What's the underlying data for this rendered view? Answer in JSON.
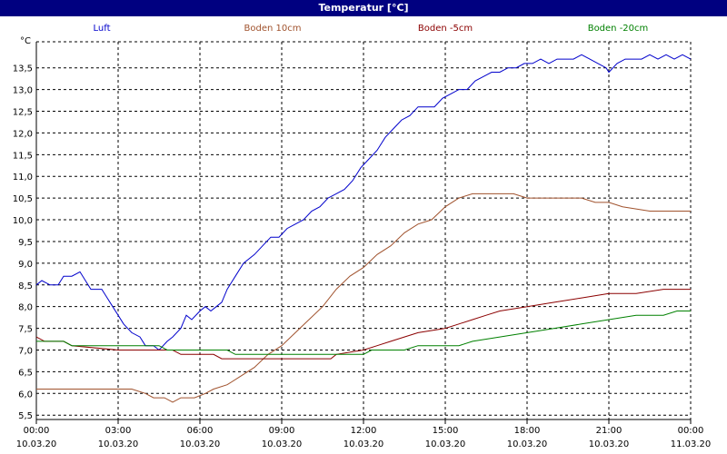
{
  "window": {
    "title": "Temperatur [°C]"
  },
  "chart_data": {
    "type": "line",
    "title": "Temperatur [°C]",
    "ylabel": "°C",
    "ylim": [
      5.4,
      14.1
    ],
    "xlim": [
      "2020-03-10 00:00",
      "2020-03-11 00:00"
    ],
    "yticks": [
      "5,5",
      "6,0",
      "6,5",
      "7,0",
      "7,5",
      "8,0",
      "8,5",
      "9,0",
      "9,5",
      "10,0",
      "10,5",
      "11,0",
      "11,5",
      "12,0",
      "12,5",
      "13,0",
      "13,5"
    ],
    "ytick_values": [
      5.5,
      6.0,
      6.5,
      7.0,
      7.5,
      8.0,
      8.5,
      9.0,
      9.5,
      10.0,
      10.5,
      11.0,
      11.5,
      12.0,
      12.5,
      13.0,
      13.5
    ],
    "xticks": [
      {
        "time": "00:00",
        "date": "10.03.20"
      },
      {
        "time": "03:00",
        "date": "10.03.20"
      },
      {
        "time": "06:00",
        "date": "10.03.20"
      },
      {
        "time": "09:00",
        "date": "10.03.20"
      },
      {
        "time": "12:00",
        "date": "10.03.20"
      },
      {
        "time": "15:00",
        "date": "10.03.20"
      },
      {
        "time": "18:00",
        "date": "10.03.20"
      },
      {
        "time": "21:00",
        "date": "10.03.20"
      },
      {
        "time": "00:00",
        "date": "11.03.20"
      }
    ],
    "grid": true,
    "legend_position": "top",
    "series": [
      {
        "name": "Luft",
        "color": "#0000cc",
        "points": [
          [
            0.0,
            8.5
          ],
          [
            0.2,
            8.6
          ],
          [
            0.5,
            8.5
          ],
          [
            0.8,
            8.5
          ],
          [
            1.0,
            8.7
          ],
          [
            1.3,
            8.7
          ],
          [
            1.6,
            8.8
          ],
          [
            1.8,
            8.6
          ],
          [
            2.0,
            8.4
          ],
          [
            2.4,
            8.4
          ],
          [
            2.6,
            8.2
          ],
          [
            2.8,
            8.0
          ],
          [
            3.0,
            7.8
          ],
          [
            3.2,
            7.6
          ],
          [
            3.5,
            7.4
          ],
          [
            3.8,
            7.3
          ],
          [
            4.0,
            7.1
          ],
          [
            4.3,
            7.1
          ],
          [
            4.5,
            7.0
          ],
          [
            4.8,
            7.2
          ],
          [
            5.0,
            7.3
          ],
          [
            5.3,
            7.5
          ],
          [
            5.5,
            7.8
          ],
          [
            5.7,
            7.7
          ],
          [
            6.0,
            7.9
          ],
          [
            6.2,
            8.0
          ],
          [
            6.4,
            7.9
          ],
          [
            6.6,
            8.0
          ],
          [
            6.8,
            8.1
          ],
          [
            7.0,
            8.4
          ],
          [
            7.3,
            8.7
          ],
          [
            7.6,
            9.0
          ],
          [
            8.0,
            9.2
          ],
          [
            8.3,
            9.4
          ],
          [
            8.6,
            9.6
          ],
          [
            8.9,
            9.6
          ],
          [
            9.2,
            9.8
          ],
          [
            9.5,
            9.9
          ],
          [
            9.8,
            10.0
          ],
          [
            10.1,
            10.2
          ],
          [
            10.4,
            10.3
          ],
          [
            10.7,
            10.5
          ],
          [
            11.0,
            10.6
          ],
          [
            11.3,
            10.7
          ],
          [
            11.6,
            10.9
          ],
          [
            11.9,
            11.2
          ],
          [
            12.2,
            11.4
          ],
          [
            12.5,
            11.6
          ],
          [
            12.8,
            11.9
          ],
          [
            13.1,
            12.1
          ],
          [
            13.4,
            12.3
          ],
          [
            13.7,
            12.4
          ],
          [
            14.0,
            12.6
          ],
          [
            14.3,
            12.6
          ],
          [
            14.6,
            12.6
          ],
          [
            14.9,
            12.8
          ],
          [
            15.2,
            12.9
          ],
          [
            15.5,
            13.0
          ],
          [
            15.8,
            13.0
          ],
          [
            16.1,
            13.2
          ],
          [
            16.4,
            13.3
          ],
          [
            16.7,
            13.4
          ],
          [
            17.0,
            13.4
          ],
          [
            17.3,
            13.5
          ],
          [
            17.6,
            13.5
          ],
          [
            17.9,
            13.6
          ],
          [
            18.2,
            13.6
          ],
          [
            18.5,
            13.7
          ],
          [
            18.8,
            13.6
          ],
          [
            19.1,
            13.7
          ],
          [
            19.4,
            13.7
          ],
          [
            19.7,
            13.7
          ],
          [
            20.0,
            13.8
          ],
          [
            20.3,
            13.7
          ],
          [
            20.6,
            13.6
          ],
          [
            20.9,
            13.5
          ],
          [
            21.0,
            13.4
          ],
          [
            21.3,
            13.6
          ],
          [
            21.6,
            13.7
          ],
          [
            21.9,
            13.7
          ],
          [
            22.2,
            13.7
          ],
          [
            22.5,
            13.8
          ],
          [
            22.8,
            13.7
          ],
          [
            23.1,
            13.8
          ],
          [
            23.4,
            13.7
          ],
          [
            23.7,
            13.8
          ],
          [
            24.0,
            13.7
          ]
        ]
      },
      {
        "name": "Boden 10cm",
        "color": "#a0522d",
        "points": [
          [
            0.0,
            6.1
          ],
          [
            3.5,
            6.1
          ],
          [
            4.0,
            6.0
          ],
          [
            4.3,
            5.9
          ],
          [
            4.7,
            5.9
          ],
          [
            5.0,
            5.8
          ],
          [
            5.3,
            5.9
          ],
          [
            5.8,
            5.9
          ],
          [
            6.2,
            6.0
          ],
          [
            6.5,
            6.1
          ],
          [
            7.0,
            6.2
          ],
          [
            7.5,
            6.4
          ],
          [
            8.0,
            6.6
          ],
          [
            8.5,
            6.9
          ],
          [
            9.0,
            7.1
          ],
          [
            9.5,
            7.4
          ],
          [
            10.0,
            7.7
          ],
          [
            10.5,
            8.0
          ],
          [
            11.0,
            8.4
          ],
          [
            11.5,
            8.7
          ],
          [
            12.0,
            8.9
          ],
          [
            12.5,
            9.2
          ],
          [
            13.0,
            9.4
          ],
          [
            13.5,
            9.7
          ],
          [
            14.0,
            9.9
          ],
          [
            14.5,
            10.0
          ],
          [
            15.0,
            10.3
          ],
          [
            15.5,
            10.5
          ],
          [
            16.0,
            10.6
          ],
          [
            17.5,
            10.6
          ],
          [
            18.0,
            10.5
          ],
          [
            20.0,
            10.5
          ],
          [
            20.5,
            10.4
          ],
          [
            21.0,
            10.4
          ],
          [
            21.5,
            10.3
          ],
          [
            22.5,
            10.2
          ],
          [
            24.0,
            10.2
          ]
        ]
      },
      {
        "name": "Boden -5cm",
        "color": "#8b0000",
        "points": [
          [
            0.0,
            7.3
          ],
          [
            0.3,
            7.2
          ],
          [
            1.0,
            7.2
          ],
          [
            1.3,
            7.1
          ],
          [
            3.0,
            7.0
          ],
          [
            5.0,
            7.0
          ],
          [
            5.3,
            6.9
          ],
          [
            6.5,
            6.9
          ],
          [
            6.8,
            6.8
          ],
          [
            10.8,
            6.8
          ],
          [
            11.0,
            6.9
          ],
          [
            12.0,
            7.0
          ],
          [
            12.5,
            7.1
          ],
          [
            13.0,
            7.2
          ],
          [
            13.5,
            7.3
          ],
          [
            14.0,
            7.4
          ],
          [
            15.0,
            7.5
          ],
          [
            15.5,
            7.6
          ],
          [
            16.0,
            7.7
          ],
          [
            16.5,
            7.8
          ],
          [
            17.0,
            7.9
          ],
          [
            18.0,
            8.0
          ],
          [
            19.0,
            8.1
          ],
          [
            20.0,
            8.2
          ],
          [
            21.0,
            8.3
          ],
          [
            22.0,
            8.3
          ],
          [
            23.0,
            8.4
          ],
          [
            24.0,
            8.4
          ]
        ]
      },
      {
        "name": "Boden -20cm",
        "color": "#008000",
        "points": [
          [
            0.0,
            7.2
          ],
          [
            1.0,
            7.2
          ],
          [
            1.3,
            7.1
          ],
          [
            4.5,
            7.1
          ],
          [
            4.8,
            7.0
          ],
          [
            7.0,
            7.0
          ],
          [
            7.3,
            6.9
          ],
          [
            12.0,
            6.9
          ],
          [
            12.3,
            7.0
          ],
          [
            13.5,
            7.0
          ],
          [
            14.0,
            7.1
          ],
          [
            15.5,
            7.1
          ],
          [
            16.0,
            7.2
          ],
          [
            17.0,
            7.3
          ],
          [
            18.0,
            7.4
          ],
          [
            19.0,
            7.5
          ],
          [
            20.0,
            7.6
          ],
          [
            21.0,
            7.7
          ],
          [
            22.0,
            7.8
          ],
          [
            23.0,
            7.8
          ],
          [
            23.5,
            7.9
          ],
          [
            24.0,
            7.9
          ]
        ]
      }
    ]
  }
}
